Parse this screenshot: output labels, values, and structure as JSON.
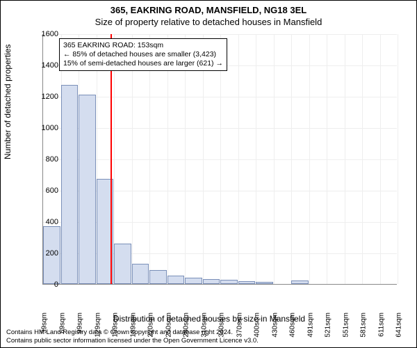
{
  "header": {
    "address": "365, EAKRING ROAD, MANSFIELD, NG18 3EL",
    "subtitle": "Size of property relative to detached houses in Mansfield"
  },
  "chart": {
    "type": "histogram",
    "ylabel": "Number of detached properties",
    "xlabel": "Distribution of detached houses by size in Mansfield",
    "ylim_max": 1600,
    "ytick_step": 200,
    "yticks": [
      0,
      200,
      400,
      600,
      800,
      1000,
      1200,
      1400,
      1600
    ],
    "xticks": [
      "39sqm",
      "69sqm",
      "99sqm",
      "129sqm",
      "159sqm",
      "189sqm",
      "220sqm",
      "250sqm",
      "280sqm",
      "310sqm",
      "340sqm",
      "370sqm",
      "400sqm",
      "430sqm",
      "460sqm",
      "491sqm",
      "521sqm",
      "551sqm",
      "581sqm",
      "611sqm",
      "641sqm"
    ],
    "bar_values": [
      370,
      1270,
      1210,
      670,
      260,
      130,
      90,
      55,
      40,
      30,
      25,
      18,
      12,
      0,
      22,
      0,
      0,
      0,
      0,
      0
    ],
    "bar_fill": "#d4ddef",
    "bar_border": "#7a8fb8",
    "grid_color": "#eeeeee",
    "background_color": "#ffffff",
    "ref_line_index": 3.8,
    "ref_line_color": "#ff0000"
  },
  "annotation": {
    "line1": "365 EAKRING ROAD: 153sqm",
    "line2": "← 85% of detached houses are smaller (3,423)",
    "line3": "15% of semi-detached houses are larger (621) →"
  },
  "footer": {
    "line1": "Contains HM Land Registry data © Crown copyright and database right 2024.",
    "line2": "Contains public sector information licensed under the Open Government Licence v3.0."
  }
}
